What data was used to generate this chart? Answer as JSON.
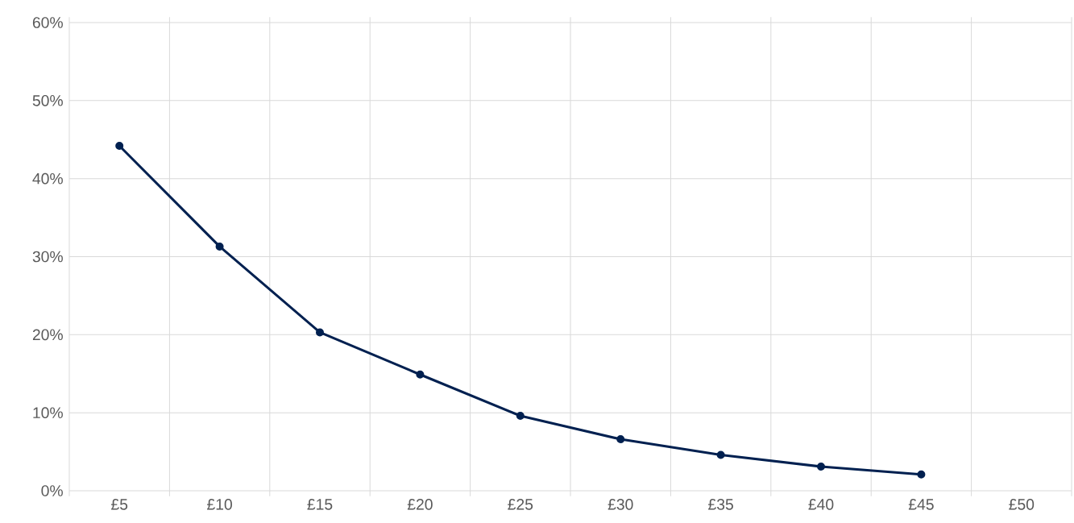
{
  "chart_data": {
    "type": "line",
    "categories": [
      "£5",
      "£10",
      "£15",
      "£20",
      "£25",
      "£30",
      "£35",
      "£40",
      "£45",
      "£50"
    ],
    "values": [
      44.2,
      31.3,
      20.3,
      14.9,
      9.6,
      6.6,
      4.6,
      3.1,
      2.1,
      null
    ],
    "color": "#002050",
    "marker": "circle",
    "grid": true,
    "ylim": [
      0,
      60
    ],
    "yticks": [
      {
        "value": 0,
        "label": "0%"
      },
      {
        "value": 10,
        "label": "10%"
      },
      {
        "value": 20,
        "label": "20%"
      },
      {
        "value": 30,
        "label": "30%"
      },
      {
        "value": 40,
        "label": "40%"
      },
      {
        "value": 50,
        "label": "50%"
      },
      {
        "value": 60,
        "label": "60%"
      }
    ]
  }
}
